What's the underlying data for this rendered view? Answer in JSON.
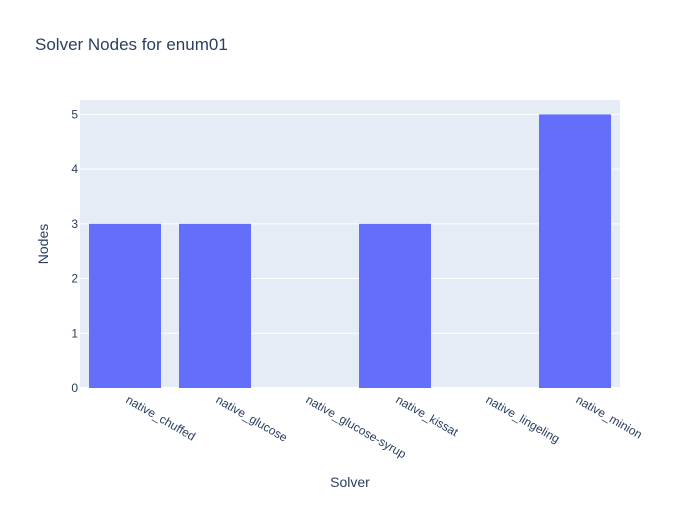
{
  "chart_data": {
    "type": "bar",
    "title": "Solver Nodes for enum01",
    "xlabel": "Solver",
    "ylabel": "Nodes",
    "categories": [
      "native_chuffed",
      "native_glucose",
      "native_glucose-syrup",
      "native_kissat",
      "native_lingeling",
      "native_minion"
    ],
    "values": [
      3,
      3,
      0,
      3,
      0,
      5
    ],
    "ylim": [
      0,
      5.263
    ],
    "yticks": [
      0,
      1,
      2,
      3,
      4,
      5
    ],
    "grid": true,
    "legend": "none",
    "colors": {
      "bar": "#636efa",
      "plot_bg": "#e5ecf6",
      "grid": "#ffffff",
      "text": "#2a3f5f"
    }
  }
}
